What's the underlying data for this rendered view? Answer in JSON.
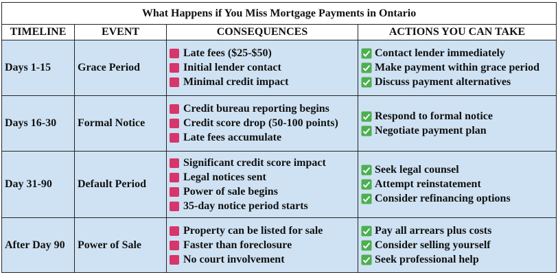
{
  "title": "What Happens if You Miss Mortgage Payments in Ontario",
  "headers": [
    "TIMELINE",
    "EVENT",
    "CONSEQUENCES",
    "ACTIONS YOU CAN TAKE"
  ],
  "rows": [
    {
      "timeline": "Days 1-15",
      "event": "Grace Period",
      "consequences": [
        "Late fees ($25-$50)",
        "Initial lender contact",
        "Minimal credit impact"
      ],
      "actions": [
        "Contact lender immediately",
        "Make payment within grace period",
        "Discuss payment alternatives"
      ]
    },
    {
      "timeline": "Days 16-30",
      "event": "Formal Notice",
      "consequences": [
        "Credit bureau reporting begins",
        "Credit score drop (50-100 points)",
        "Late fees accumulate"
      ],
      "actions": [
        "Respond to formal notice",
        "Negotiate payment plan"
      ]
    },
    {
      "timeline": "Day 31-90",
      "event": "Default Period",
      "consequences": [
        "Significant credit score impact",
        "Legal notices sent",
        "Power of sale begins",
        "35-day notice period starts"
      ],
      "actions": [
        "Seek legal counsel",
        "Attempt reinstatement",
        "Consider refinancing options"
      ]
    },
    {
      "timeline": "After Day 90",
      "event": "Power of Sale",
      "consequences": [
        "Property can be listed for sale",
        "Faster than foreclosure",
        "No court involvement"
      ],
      "actions": [
        "Pay all arrears plus costs",
        "Consider selling yourself",
        "Seek professional help"
      ]
    }
  ]
}
